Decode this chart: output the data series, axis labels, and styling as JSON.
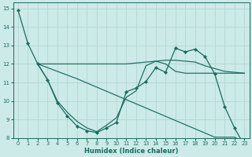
{
  "xlabel": "Humidex (Indice chaleur)",
  "bg_color": "#cceae7",
  "grid_color": "#b0d8d4",
  "line_color": "#1a6b60",
  "xlim": [
    -0.5,
    23.5
  ],
  "ylim": [
    8,
    15.3
  ],
  "yticks": [
    8,
    9,
    10,
    11,
    12,
    13,
    14,
    15
  ],
  "xticks": [
    0,
    1,
    2,
    3,
    4,
    5,
    6,
    7,
    8,
    9,
    10,
    11,
    12,
    13,
    14,
    15,
    16,
    17,
    18,
    19,
    20,
    21,
    22,
    23
  ],
  "lines": [
    {
      "x": [
        0,
        1,
        2,
        3,
        4,
        5,
        6,
        7,
        8,
        9,
        10,
        11,
        12,
        13,
        14,
        15,
        16,
        17,
        18,
        19,
        20,
        21,
        22,
        23
      ],
      "y": [
        14.9,
        13.1,
        12.0,
        11.15,
        9.9,
        9.2,
        8.65,
        8.4,
        8.3,
        8.55,
        8.85,
        10.5,
        10.7,
        11.05,
        11.8,
        11.55,
        12.85,
        12.65,
        12.8,
        12.4,
        11.45,
        9.7,
        8.55,
        7.6
      ],
      "marker": true
    },
    {
      "x": [
        2,
        3,
        4,
        5,
        6,
        7,
        8,
        9,
        10,
        11,
        12,
        13,
        14,
        15,
        16,
        17,
        18,
        19,
        20,
        21,
        22,
        23
      ],
      "y": [
        12.0,
        12.0,
        12.0,
        12.0,
        12.0,
        12.0,
        12.0,
        12.0,
        12.0,
        12.0,
        12.05,
        12.1,
        12.15,
        12.2,
        12.2,
        12.15,
        12.1,
        11.9,
        11.75,
        11.6,
        11.55,
        11.5
      ],
      "marker": false
    },
    {
      "x": [
        2,
        3,
        4,
        5,
        6,
        7,
        8,
        9,
        10,
        11,
        12,
        13,
        14,
        15,
        16,
        17,
        18,
        19,
        20,
        21,
        22,
        23
      ],
      "y": [
        12.0,
        11.15,
        10.0,
        9.4,
        8.9,
        8.55,
        8.35,
        8.7,
        9.1,
        10.2,
        10.55,
        11.9,
        12.15,
        12.0,
        11.6,
        11.5,
        11.5,
        11.5,
        11.5,
        11.5,
        11.5,
        11.5
      ],
      "marker": false
    },
    {
      "x": [
        2,
        4,
        6,
        8,
        10,
        12,
        14,
        16,
        18,
        20,
        22,
        23
      ],
      "y": [
        12.0,
        11.6,
        11.2,
        10.75,
        10.3,
        9.85,
        9.4,
        8.95,
        8.5,
        8.05,
        8.05,
        7.8
      ],
      "marker": false
    }
  ]
}
